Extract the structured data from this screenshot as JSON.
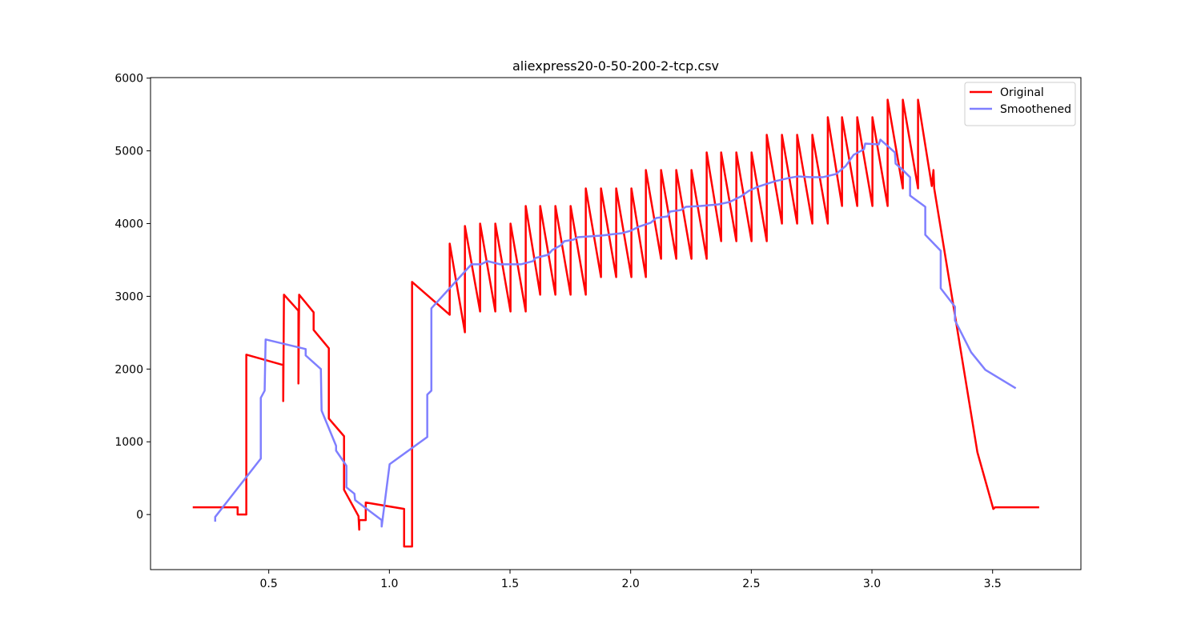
{
  "chart_data": {
    "type": "line",
    "title": "aliexpress20-0-50-200-2-tcp.csv",
    "xlim": [
      0.01,
      3.866
    ],
    "ylim": [
      -757,
      6007
    ],
    "xticks": [
      0.5,
      {
        "value": 1,
        "label": "1.0"
      },
      1.5,
      {
        "value": 2,
        "label": "2.0"
      },
      2.5,
      {
        "value": 3,
        "label": "3.0"
      },
      3.5
    ],
    "yticks": [
      0,
      1000,
      2000,
      3000,
      4000,
      5000,
      6000
    ],
    "legend": "upper right",
    "grid": false,
    "series": [
      {
        "name": "Original",
        "color": "#ff0000",
        "x": [
          0.185,
          0.371,
          0.371,
          0.407,
          0.407,
          0.56,
          0.56,
          0.563,
          0.623,
          0.623,
          0.626,
          0.686,
          0.686,
          0.749,
          0.749,
          0.812,
          0.812,
          0.872,
          0.875,
          0.875,
          0.902,
          0.902,
          1.061,
          1.061,
          1.094,
          1.094,
          1.25,
          1.25,
          1.313,
          1.313,
          1.376,
          1.376,
          1.439,
          1.439,
          1.502,
          1.502,
          1.565,
          1.565,
          1.625,
          1.625,
          1.688,
          1.688,
          1.751,
          1.751,
          1.814,
          1.814,
          1.877,
          1.877,
          1.94,
          1.94,
          2.003,
          2.003,
          2.063,
          2.063,
          2.126,
          2.126,
          2.189,
          2.189,
          2.252,
          2.252,
          2.315,
          2.315,
          2.375,
          2.375,
          2.438,
          2.438,
          2.501,
          2.501,
          2.564,
          2.564,
          2.627,
          2.627,
          2.69,
          2.69,
          2.753,
          2.753,
          2.817,
          2.817,
          2.876,
          2.876,
          2.939,
          2.939,
          3.002,
          3.002,
          3.065,
          3.065,
          3.128,
          3.128,
          3.191,
          3.191,
          3.248,
          3.255,
          3.258,
          3.437,
          3.503,
          3.51,
          3.693
        ],
        "values": [
          99,
          99,
          0,
          0,
          2198,
          2055,
          1560,
          3022,
          2802,
          1802,
          3022,
          2780,
          2538,
          2286,
          1319,
          1077,
          341,
          -22,
          -209,
          -77,
          -77,
          165,
          77,
          -440,
          -440,
          3198,
          2747,
          3725,
          2505,
          3967,
          2791,
          4000,
          2791,
          4000,
          2791,
          4000,
          2791,
          4242,
          3022,
          4242,
          3022,
          4242,
          3022,
          4242,
          3022,
          4484,
          3264,
          4484,
          3264,
          4484,
          3264,
          4484,
          3264,
          4736,
          3516,
          4736,
          3516,
          4736,
          3516,
          4736,
          3516,
          4978,
          3758,
          4978,
          3758,
          4978,
          3758,
          4978,
          3758,
          5220,
          4000,
          5220,
          4000,
          5220,
          4000,
          5220,
          4000,
          5462,
          4242,
          5462,
          4242,
          5462,
          4242,
          5462,
          4242,
          5703,
          4484,
          5703,
          4484,
          5703,
          4516,
          4736,
          4484,
          857,
          77,
          99,
          99
        ]
      },
      {
        "name": "Smoothened",
        "color": "#7f7fff",
        "x": [
          0.278,
          0.278,
          0.467,
          0.467,
          0.483,
          0.487,
          0.653,
          0.653,
          0.716,
          0.719,
          0.779,
          0.779,
          0.822,
          0.822,
          0.855,
          0.858,
          0.968,
          0.968,
          1.001,
          1.157,
          1.157,
          1.174,
          1.174,
          1.34,
          1.38,
          1.406,
          1.459,
          1.545,
          1.595,
          1.605,
          1.658,
          1.675,
          1.711,
          1.725,
          1.764,
          1.781,
          1.877,
          1.964,
          2.0,
          2.033,
          2.083,
          2.106,
          2.153,
          2.163,
          2.209,
          2.229,
          2.289,
          2.363,
          2.41,
          2.457,
          2.49,
          2.526,
          2.598,
          2.655,
          2.692,
          2.749,
          2.795,
          2.851,
          2.891,
          2.924,
          2.967,
          2.972,
          3.028,
          3.035,
          3.095,
          3.098,
          3.121,
          3.158,
          3.158,
          3.221,
          3.221,
          3.285,
          3.285,
          3.344,
          3.344,
          3.411,
          3.47,
          3.596
        ],
        "values": [
          -99,
          -33,
          769,
          1604,
          1703,
          2407,
          2275,
          2187,
          2000,
          1429,
          945,
          879,
          670,
          374,
          286,
          198,
          -77,
          -165,
          692,
          1066,
          1648,
          1703,
          2835,
          3440,
          3440,
          3484,
          3440,
          3440,
          3484,
          3527,
          3571,
          3637,
          3703,
          3758,
          3780,
          3813,
          3835,
          3868,
          3901,
          3956,
          4011,
          4077,
          4099,
          4165,
          4187,
          4231,
          4242,
          4264,
          4297,
          4374,
          4451,
          4505,
          4582,
          4626,
          4648,
          4637,
          4637,
          4681,
          4791,
          4945,
          5022,
          5099,
          5088,
          5154,
          4978,
          4824,
          4758,
          4637,
          4385,
          4231,
          3846,
          3626,
          3110,
          2857,
          2670,
          2231,
          1989,
          1736
        ]
      }
    ]
  }
}
